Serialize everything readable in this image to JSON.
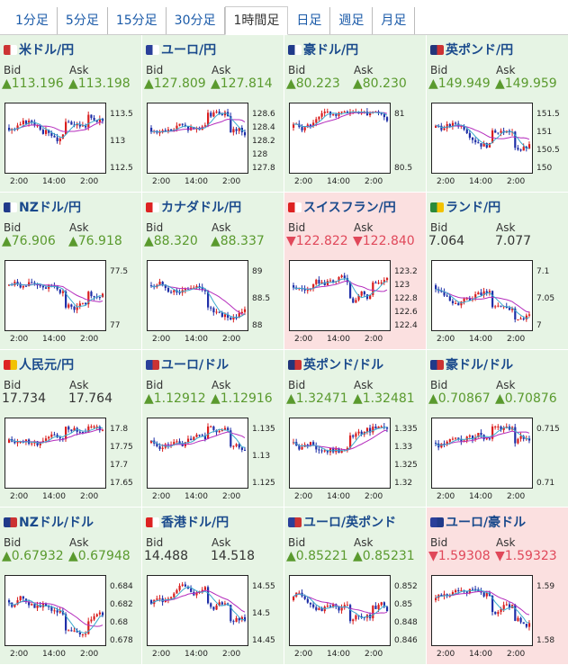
{
  "tabs": [
    "1分足",
    "5分足",
    "15分足",
    "30分足",
    "1時間足",
    "日足",
    "週足",
    "月足"
  ],
  "active_tab": 4,
  "labels": {
    "bid": "Bid",
    "ask": "Ask"
  },
  "x_ticks": [
    "2:00",
    "14:00",
    "2:00"
  ],
  "pairs": [
    {
      "name": "米ドル/円",
      "dir": "up",
      "bid": "▲113.196",
      "ask": "▲113.198",
      "yticks": [
        "113.5",
        "113",
        "112.5"
      ],
      "flag": [
        "#c33",
        "#fff"
      ]
    },
    {
      "name": "ユーロ/円",
      "dir": "up",
      "bid": "▲127.809",
      "ask": "▲127.814",
      "yticks": [
        "128.6",
        "128.4",
        "128.2",
        "128",
        "127.8"
      ],
      "flag": [
        "#2a3f9a",
        "#fff"
      ]
    },
    {
      "name": "豪ドル/円",
      "dir": "up",
      "bid": "▲80.223",
      "ask": "▲80.230",
      "yticks": [
        "81",
        "80.5"
      ],
      "flag": [
        "#203a8a",
        "#fff"
      ]
    },
    {
      "name": "英ポンド/円",
      "dir": "up",
      "bid": "▲149.949",
      "ask": "▲149.959",
      "yticks": [
        "151.5",
        "151",
        "150.5",
        "150"
      ],
      "flag": [
        "#23357a",
        "#c33"
      ]
    },
    {
      "name": "NZドル/円",
      "dir": "up",
      "bid": "▲76.906",
      "ask": "▲76.918",
      "yticks": [
        "77.5",
        "77"
      ],
      "flag": [
        "#203a8a",
        "#fff"
      ]
    },
    {
      "name": "カナダドル/円",
      "dir": "up",
      "bid": "▲88.320",
      "ask": "▲88.337",
      "yticks": [
        "89",
        "88.5",
        "88"
      ],
      "flag": [
        "#d22",
        "#fff"
      ]
    },
    {
      "name": "スイスフラン/円",
      "dir": "down",
      "bid": "▼122.822",
      "ask": "▼122.840",
      "yticks": [
        "123.2",
        "123",
        "122.8",
        "122.6",
        "122.4"
      ],
      "flag": [
        "#d22",
        "#fff"
      ]
    },
    {
      "name": "ランド/円",
      "dir": "neutral",
      "bid": "7.064",
      "ask": "7.077",
      "yticks": [
        "7.1",
        "7.05",
        "7"
      ],
      "flag": [
        "#2a8a3a",
        "#f2c200"
      ]
    },
    {
      "name": "人民元/円",
      "dir": "neutral",
      "bid": "17.734",
      "ask": "17.764",
      "yticks": [
        "17.8",
        "17.75",
        "17.7",
        "17.65"
      ],
      "flag": [
        "#d22",
        "#f2c200"
      ]
    },
    {
      "name": "ユーロ/ドル",
      "dir": "up",
      "bid": "▲1.12912",
      "ask": "▲1.12916",
      "yticks": [
        "1.135",
        "1.13",
        "1.125"
      ],
      "flag": [
        "#2a3f9a",
        "#c33"
      ]
    },
    {
      "name": "英ポンド/ドル",
      "dir": "up",
      "bid": "▲1.32471",
      "ask": "▲1.32481",
      "yticks": [
        "1.335",
        "1.33",
        "1.325",
        "1.32"
      ],
      "flag": [
        "#23357a",
        "#c33"
      ]
    },
    {
      "name": "豪ドル/ドル",
      "dir": "up",
      "bid": "▲0.70867",
      "ask": "▲0.70876",
      "yticks": [
        "0.715",
        "0.71"
      ],
      "flag": [
        "#203a8a",
        "#c33"
      ]
    },
    {
      "name": "NZドル/ドル",
      "dir": "up",
      "bid": "▲0.67932",
      "ask": "▲0.67948",
      "yticks": [
        "0.684",
        "0.682",
        "0.68",
        "0.678"
      ],
      "flag": [
        "#203a8a",
        "#c33"
      ]
    },
    {
      "name": "香港ドル/円",
      "dir": "neutral",
      "bid": "14.488",
      "ask": "14.518",
      "yticks": [
        "14.55",
        "14.5",
        "14.45"
      ],
      "flag": [
        "#d22",
        "#fff"
      ]
    },
    {
      "name": "ユーロ/英ポンド",
      "dir": "up",
      "bid": "▲0.85221",
      "ask": "▲0.85231",
      "yticks": [
        "0.852",
        "0.85",
        "0.848",
        "0.846"
      ],
      "flag": [
        "#2a3f9a",
        "#c33"
      ]
    },
    {
      "name": "ユーロ/豪ドル",
      "dir": "down",
      "bid": "▼1.59308",
      "ask": "▼1.59323",
      "yticks": [
        "1.59",
        "1.58"
      ],
      "flag": [
        "#2a3f9a",
        "#203a8a"
      ]
    }
  ],
  "colors": {
    "up_bg": "#e6f4e4",
    "down_bg": "#fbe0e0",
    "up_text": "#5a9a2e",
    "down_text": "#e0485a",
    "candle_up": "#d91e1e",
    "candle_down": "#1f2fa8",
    "ma_short": "#3aaacc",
    "ma_long": "#b52dbd"
  }
}
